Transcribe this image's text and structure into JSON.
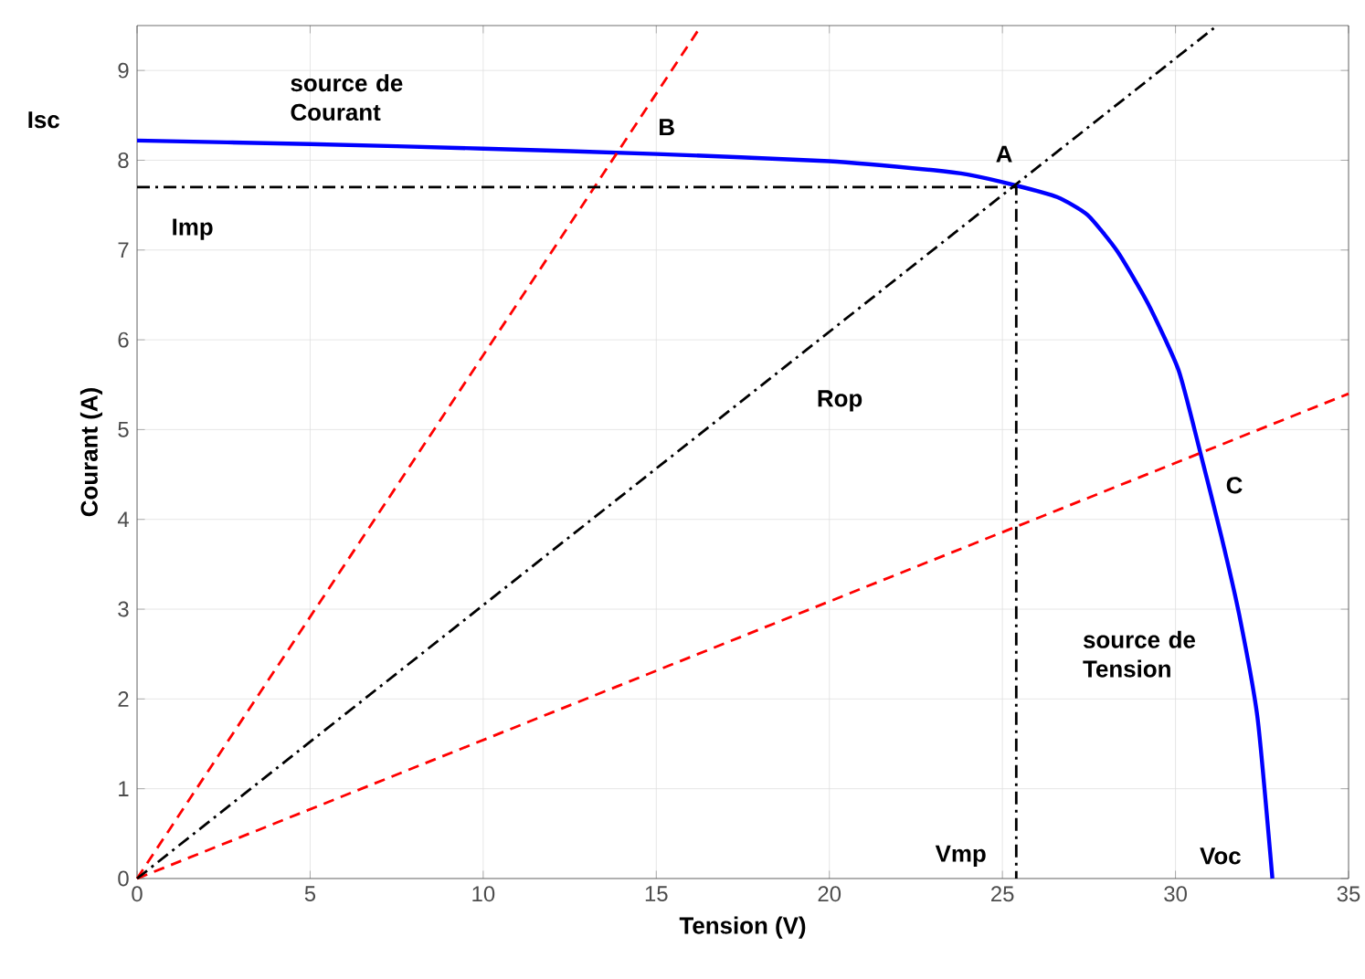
{
  "chart_data": {
    "type": "line",
    "xlabel": "Tension (V)",
    "ylabel": "Courant (A)",
    "xlim": [
      0,
      35
    ],
    "ylim": [
      0,
      9.5
    ],
    "xticks": [
      0,
      5,
      10,
      15,
      20,
      25,
      30,
      35
    ],
    "yticks": [
      0,
      1,
      2,
      3,
      4,
      5,
      6,
      7,
      8,
      9
    ],
    "grid": true,
    "series": [
      {
        "type": "line",
        "color": "#0000ff",
        "line_style": "solid",
        "x": [
          0,
          5,
          10,
          15,
          20,
          23,
          24,
          25.38,
          26.58,
          27.46,
          28.33,
          29.21,
          30.09,
          30.7,
          31.32,
          31.84,
          32.37,
          32.8
        ],
        "values": [
          8.22,
          8.18,
          8.13,
          8.07,
          7.99,
          7.89,
          7.84,
          7.72,
          7.59,
          7.39,
          6.98,
          6.4,
          5.66,
          4.77,
          3.82,
          2.94,
          1.79,
          0
        ]
      },
      {
        "type": "line",
        "color": "#ff0000",
        "line_style": "dashed",
        "x": [
          0,
          16.3
        ],
        "values": [
          0,
          9.5
        ]
      },
      {
        "type": "line",
        "color": "#ff0000",
        "line_style": "dashed",
        "x": [
          0,
          35
        ],
        "values": [
          0,
          5.4
        ]
      },
      {
        "type": "line",
        "color": "#000000",
        "line_style": "dashdot",
        "x": [
          0,
          31.2
        ],
        "values": [
          0,
          9.5
        ]
      },
      {
        "type": "line",
        "color": "#000000",
        "line_style": "dashdot",
        "x": [
          0,
          25.4,
          25.4
        ],
        "values": [
          7.7,
          7.7,
          0
        ]
      }
    ],
    "annotations": [
      "Isc",
      "source de Courant",
      "B",
      "A",
      "Imp",
      "Rop",
      "C",
      "source de Tension",
      "Vmp",
      "Voc"
    ]
  }
}
